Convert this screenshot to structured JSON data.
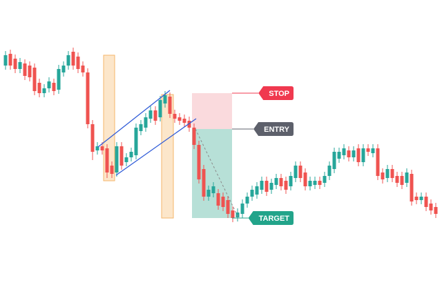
{
  "chart_data": {
    "type": "candlestick",
    "ylim": [
      0,
      430
    ],
    "up_color": "#26a69a",
    "down_color": "#ef5350",
    "ohlc": [
      [
        335,
        356,
        329,
        350
      ],
      [
        352,
        358,
        329,
        335
      ],
      [
        345,
        351,
        324,
        330
      ],
      [
        330,
        346,
        324,
        340
      ],
      [
        338,
        344,
        314,
        320
      ],
      [
        335,
        341,
        312,
        318
      ],
      [
        332,
        338,
        292,
        298
      ],
      [
        310,
        316,
        289,
        295
      ],
      [
        295,
        308,
        289,
        302
      ],
      [
        302,
        318,
        296,
        312
      ],
      [
        310,
        316,
        292,
        298
      ],
      [
        300,
        336,
        294,
        330
      ],
      [
        325,
        341,
        319,
        335
      ],
      [
        335,
        356,
        329,
        350
      ],
      [
        355,
        361,
        329,
        335
      ],
      [
        348,
        354,
        324,
        330
      ],
      [
        335,
        341,
        319,
        325
      ],
      [
        325,
        331,
        244,
        250
      ],
      [
        250,
        256,
        198,
        210
      ],
      [
        212,
        224,
        206,
        218
      ],
      [
        218,
        224,
        206,
        212
      ],
      [
        215,
        221,
        172,
        180
      ],
      [
        190,
        196,
        172,
        178
      ],
      [
        180,
        224,
        174,
        218
      ],
      [
        218,
        224,
        184,
        190
      ],
      [
        195,
        208,
        189,
        202
      ],
      [
        202,
        216,
        196,
        210
      ],
      [
        205,
        251,
        199,
        245
      ],
      [
        240,
        256,
        234,
        250
      ],
      [
        245,
        266,
        239,
        260
      ],
      [
        258,
        276,
        252,
        270
      ],
      [
        270,
        276,
        249,
        255
      ],
      [
        260,
        291,
        254,
        285
      ],
      [
        280,
        298,
        274,
        292
      ],
      [
        290,
        296,
        259,
        265
      ],
      [
        265,
        271,
        252,
        258
      ],
      [
        260,
        266,
        249,
        255
      ],
      [
        258,
        264,
        246,
        252
      ],
      [
        255,
        261,
        239,
        245
      ],
      [
        245,
        251,
        214,
        220
      ],
      [
        220,
        226,
        164,
        170
      ],
      [
        185,
        191,
        139,
        145
      ],
      [
        145,
        161,
        139,
        155
      ],
      [
        150,
        166,
        144,
        160
      ],
      [
        150,
        156,
        126,
        132
      ],
      [
        145,
        151,
        124,
        130
      ],
      [
        140,
        146,
        114,
        120
      ],
      [
        125,
        131,
        108,
        114
      ],
      [
        115,
        128,
        109,
        122
      ],
      [
        120,
        141,
        114,
        135
      ],
      [
        135,
        151,
        129,
        145
      ],
      [
        145,
        161,
        139,
        155
      ],
      [
        148,
        166,
        142,
        160
      ],
      [
        155,
        174,
        149,
        168
      ],
      [
        168,
        174,
        146,
        152
      ],
      [
        155,
        171,
        149,
        165
      ],
      [
        162,
        178,
        156,
        172
      ],
      [
        172,
        178,
        154,
        160
      ],
      [
        168,
        174,
        149,
        155
      ],
      [
        160,
        181,
        154,
        175
      ],
      [
        172,
        196,
        166,
        190
      ],
      [
        190,
        196,
        166,
        172
      ],
      [
        180,
        186,
        154,
        160
      ],
      [
        160,
        174,
        154,
        168
      ],
      [
        162,
        174,
        156,
        168
      ],
      [
        168,
        174,
        156,
        162
      ],
      [
        165,
        181,
        159,
        175
      ],
      [
        175,
        196,
        169,
        190
      ],
      [
        185,
        216,
        179,
        210
      ],
      [
        200,
        216,
        194,
        210
      ],
      [
        205,
        221,
        199,
        215
      ],
      [
        212,
        218,
        196,
        202
      ],
      [
        202,
        218,
        196,
        212
      ],
      [
        215,
        221,
        189,
        195
      ],
      [
        195,
        221,
        189,
        215
      ],
      [
        215,
        221,
        204,
        210
      ],
      [
        208,
        221,
        202,
        215
      ],
      [
        215,
        221,
        169,
        175
      ],
      [
        180,
        186,
        164,
        170
      ],
      [
        172,
        191,
        166,
        185
      ],
      [
        185,
        191,
        166,
        172
      ],
      [
        175,
        181,
        159,
        165
      ],
      [
        175,
        181,
        156,
        162
      ],
      [
        165,
        186,
        159,
        180
      ],
      [
        178,
        184,
        132,
        138
      ],
      [
        145,
        151,
        134,
        140
      ],
      [
        140,
        151,
        134,
        145
      ],
      [
        145,
        151,
        124,
        130
      ],
      [
        135,
        141,
        119,
        125
      ],
      [
        130,
        136,
        114,
        120
      ]
    ],
    "levels": [
      {
        "label": "STOP",
        "value": 295,
        "color": "#f0394f"
      },
      {
        "label": "ENTRY",
        "value": 243,
        "color": "#5d606b"
      },
      {
        "label": "TARGET",
        "value": 114,
        "color": "#22a48a"
      }
    ]
  }
}
